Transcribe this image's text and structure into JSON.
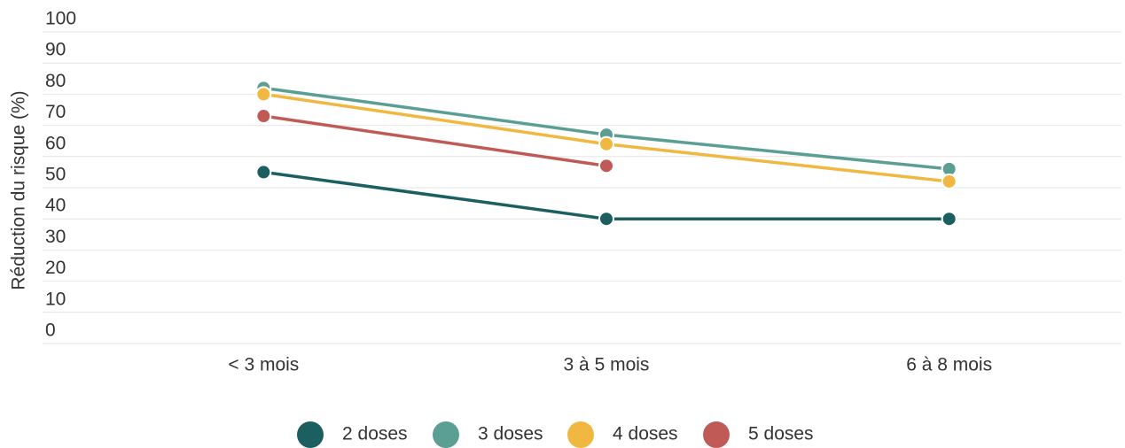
{
  "chart_data": {
    "type": "line",
    "y_label": "Réduction du risque (%)",
    "categories": [
      "< 3 mois",
      "3 à 5 mois",
      "6 à 8 mois"
    ],
    "series": [
      {
        "name": "2 doses",
        "color": "#1b5f60",
        "values": [
          55,
          40,
          40
        ]
      },
      {
        "name": "3 doses",
        "color": "#5b9e94",
        "values": [
          82,
          67,
          56
        ]
      },
      {
        "name": "4 doses",
        "color": "#f0b841",
        "values": [
          80,
          64,
          52
        ]
      },
      {
        "name": "5 doses",
        "color": "#c05a57",
        "values": [
          73,
          57,
          null
        ]
      }
    ],
    "ylim": [
      0,
      100
    ],
    "yticks": [
      0,
      10,
      20,
      30,
      40,
      50,
      60,
      70,
      80,
      90,
      100
    ],
    "grid": true
  }
}
